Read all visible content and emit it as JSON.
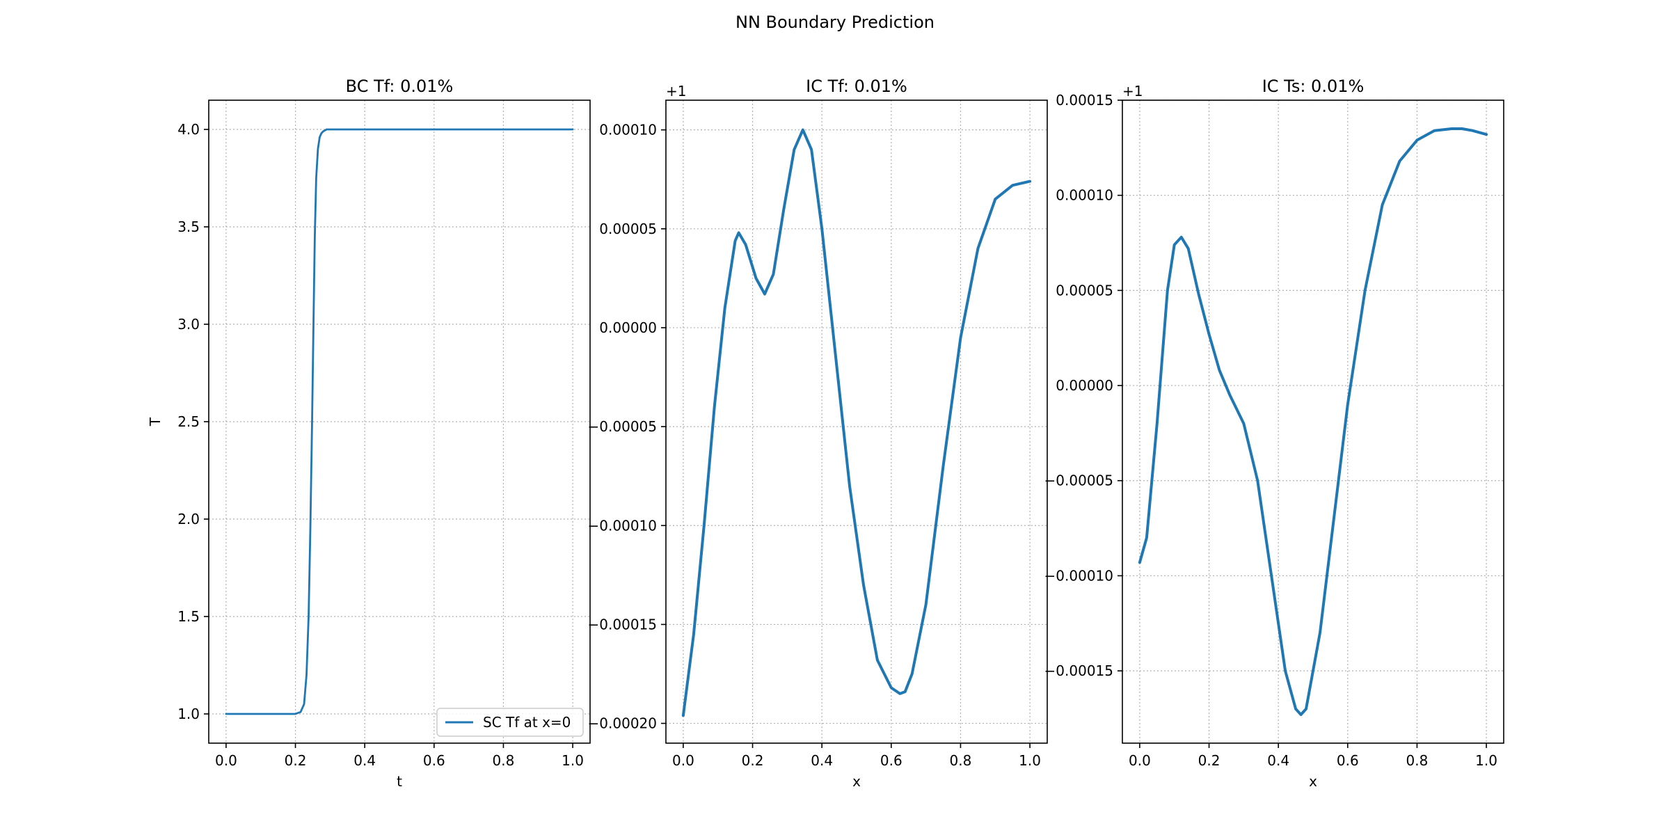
{
  "figure": {
    "suptitle": "NN Boundary Prediction"
  },
  "colors": {
    "line": "#1f77b4",
    "grid": "#b0b0b0",
    "axes": "#000000"
  },
  "chart_data": [
    {
      "type": "line",
      "title": "BC Tf: 0.01%",
      "xlabel": "t",
      "ylabel": "T",
      "offset_text": "",
      "xlim": [
        -0.05,
        1.05
      ],
      "ylim": [
        0.85,
        4.15
      ],
      "xticks": [
        0.0,
        0.2,
        0.4,
        0.6,
        0.8,
        1.0
      ],
      "xtick_labels": [
        "0.0",
        "0.2",
        "0.4",
        "0.6",
        "0.8",
        "1.0"
      ],
      "yticks": [
        1.0,
        1.5,
        2.0,
        2.5,
        3.0,
        3.5,
        4.0
      ],
      "ytick_labels": [
        "1.0",
        "1.5",
        "2.0",
        "2.5",
        "3.0",
        "3.5",
        "4.0"
      ],
      "grid": true,
      "legend": {
        "position": "lower-right",
        "entries": [
          "SC Tf at x=0"
        ]
      },
      "series": [
        {
          "name": "SC Tf at x=0",
          "x": [
            0.0,
            0.1,
            0.2,
            0.215,
            0.225,
            0.232,
            0.238,
            0.243,
            0.248,
            0.252,
            0.256,
            0.26,
            0.265,
            0.27,
            0.275,
            0.28,
            0.285,
            0.29,
            0.3,
            0.4,
            0.6,
            0.8,
            1.0
          ],
          "y": [
            1.0,
            1.0,
            1.0,
            1.01,
            1.05,
            1.2,
            1.5,
            1.95,
            2.5,
            3.0,
            3.45,
            3.75,
            3.9,
            3.96,
            3.98,
            3.99,
            3.995,
            4.0,
            4.0,
            4.0,
            4.0,
            4.0,
            4.0
          ]
        }
      ]
    },
    {
      "type": "line",
      "title": "IC Tf: 0.01%",
      "xlabel": "x",
      "ylabel": "",
      "offset_text": "+1",
      "xlim": [
        -0.05,
        1.05
      ],
      "ylim": [
        -0.00021,
        0.000115
      ],
      "xticks": [
        0.0,
        0.2,
        0.4,
        0.6,
        0.8,
        1.0
      ],
      "xtick_labels": [
        "0.0",
        "0.2",
        "0.4",
        "0.6",
        "0.8",
        "1.0"
      ],
      "yticks": [
        -0.0002,
        -0.00015,
        -0.0001,
        -5e-05,
        0.0,
        5e-05,
        0.0001
      ],
      "ytick_labels": [
        "−0.00020",
        "−0.00015",
        "−0.00010",
        "−0.00005",
        "0.00000",
        "0.00005",
        "0.00010"
      ],
      "grid": true,
      "legend": null,
      "series": [
        {
          "x": [
            0.0,
            0.03,
            0.06,
            0.09,
            0.12,
            0.15,
            0.16,
            0.18,
            0.21,
            0.235,
            0.26,
            0.29,
            0.32,
            0.345,
            0.37,
            0.4,
            0.44,
            0.48,
            0.52,
            0.56,
            0.6,
            0.625,
            0.64,
            0.66,
            0.7,
            0.75,
            0.8,
            0.85,
            0.9,
            0.95,
            1.0
          ],
          "y": [
            -0.000196,
            -0.000155,
            -0.0001,
            -4e-05,
            1e-05,
            4.4e-05,
            4.8e-05,
            4.2e-05,
            2.5e-05,
            1.7e-05,
            2.7e-05,
            6e-05,
            9e-05,
            0.0001,
            9e-05,
            5e-05,
            -1.5e-05,
            -8e-05,
            -0.00013,
            -0.000168,
            -0.000182,
            -0.000185,
            -0.000184,
            -0.000175,
            -0.00014,
            -7e-05,
            -5e-06,
            4e-05,
            6.5e-05,
            7.2e-05,
            7.4e-05
          ]
        }
      ]
    },
    {
      "type": "line",
      "title": "IC Ts: 0.01%",
      "xlabel": "x",
      "ylabel": "",
      "offset_text": "+1",
      "xlim": [
        -0.05,
        1.05
      ],
      "ylim": [
        -0.000188,
        0.00015
      ],
      "xticks": [
        0.0,
        0.2,
        0.4,
        0.6,
        0.8,
        1.0
      ],
      "xtick_labels": [
        "0.0",
        "0.2",
        "0.4",
        "0.6",
        "0.8",
        "1.0"
      ],
      "yticks": [
        -0.00015,
        -0.0001,
        -5e-05,
        0.0,
        5e-05,
        0.0001,
        0.00015
      ],
      "ytick_labels": [
        "−0.00015",
        "−0.00010",
        "−0.00005",
        "0.00000",
        "0.00005",
        "0.00010",
        "0.00015"
      ],
      "grid": true,
      "legend": null,
      "series": [
        {
          "x": [
            0.0,
            0.02,
            0.05,
            0.08,
            0.1,
            0.12,
            0.14,
            0.17,
            0.2,
            0.23,
            0.26,
            0.3,
            0.34,
            0.38,
            0.42,
            0.45,
            0.465,
            0.48,
            0.52,
            0.56,
            0.6,
            0.65,
            0.7,
            0.75,
            0.8,
            0.85,
            0.9,
            0.93,
            0.96,
            1.0
          ],
          "y": [
            -9.3e-05,
            -8e-05,
            -2e-05,
            5e-05,
            7.4e-05,
            7.8e-05,
            7.2e-05,
            4.8e-05,
            2.7e-05,
            8e-06,
            -5e-06,
            -2e-05,
            -5e-05,
            -0.0001,
            -0.00015,
            -0.00017,
            -0.000173,
            -0.00017,
            -0.00013,
            -7e-05,
            -1e-05,
            5e-05,
            9.5e-05,
            0.000118,
            0.000129,
            0.000134,
            0.000135,
            0.000135,
            0.000134,
            0.000132
          ]
        }
      ]
    }
  ]
}
